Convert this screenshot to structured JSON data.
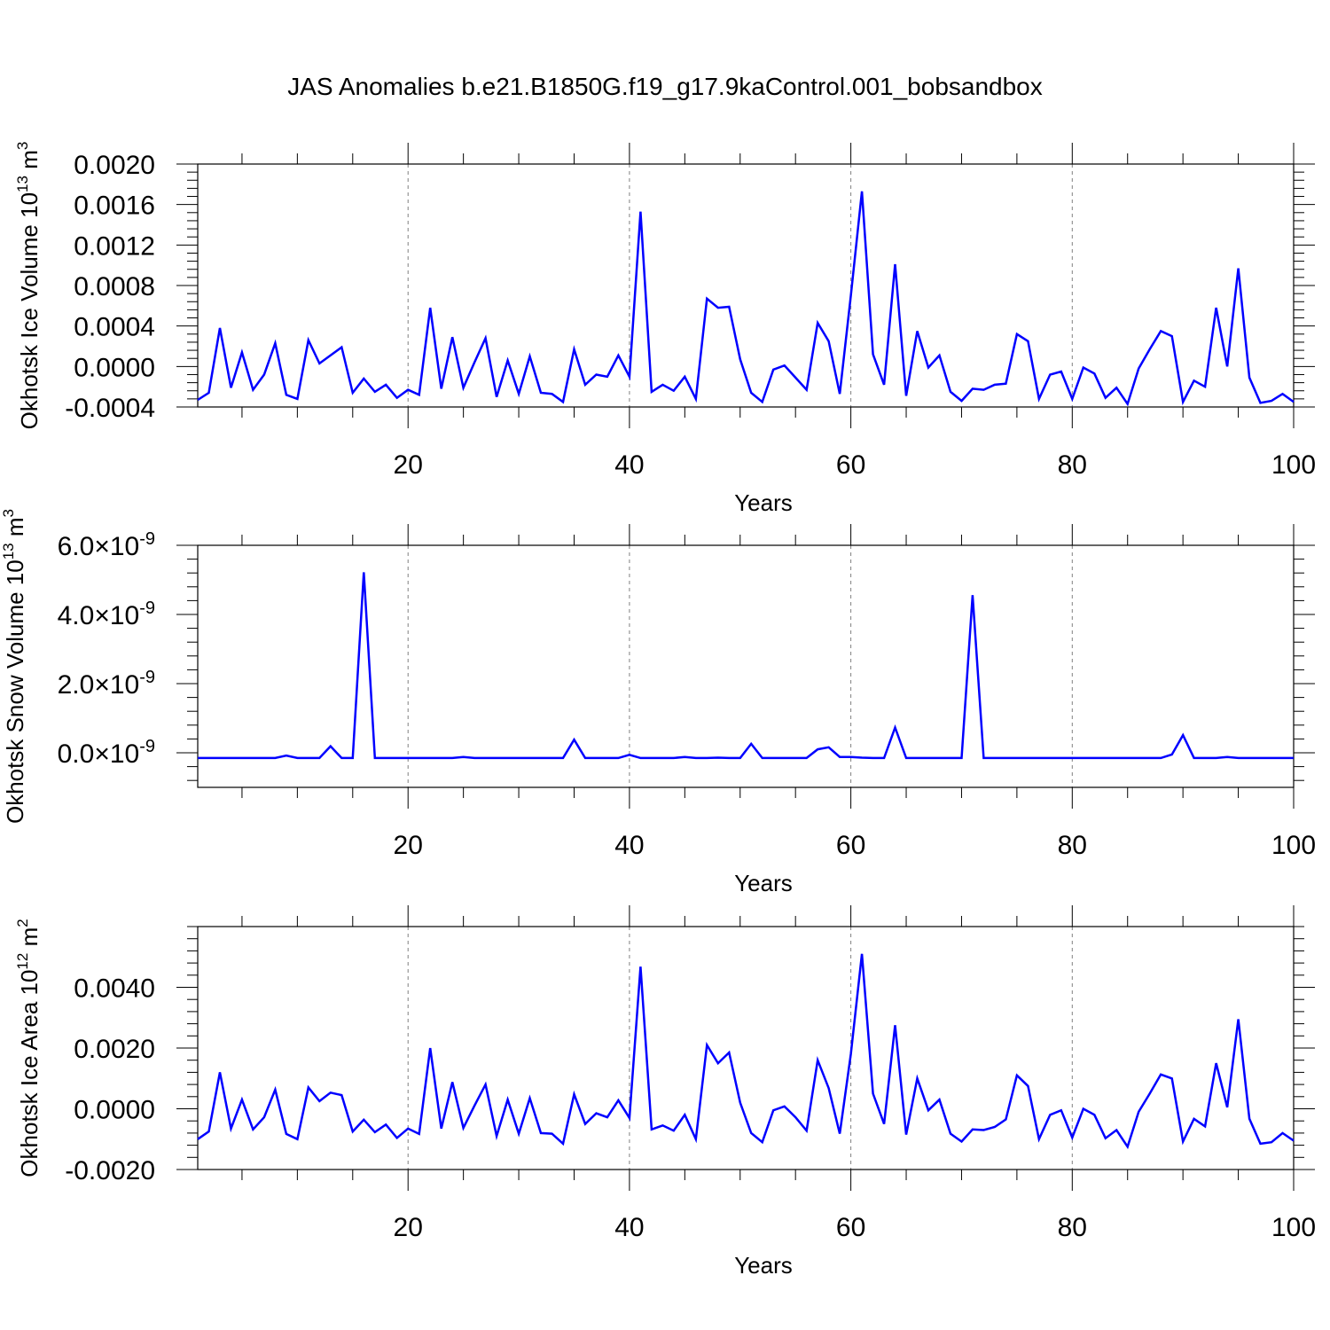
{
  "title": "JAS Anomalies b.e21.B1850G.f19_g17.9kaControl.001_bobsandbox",
  "line_color": "#0000ff",
  "chart_data": [
    {
      "type": "line",
      "ylabel": "Okhotsk Ice Volume 10",
      "ylabel_sup": "13",
      "ylabel_tail": " m",
      "ylabel_sup2": "3",
      "xlabel": "Years",
      "xlim": [
        1,
        100
      ],
      "ylim": [
        -0.0004,
        0.002
      ],
      "xticks": [
        "20",
        "40",
        "60",
        "80",
        "100"
      ],
      "xtick_values": [
        20,
        40,
        60,
        80,
        100
      ],
      "yticks": [
        "0.0020",
        "0.0016",
        "0.0012",
        "0.0008",
        "0.0004",
        "0.0000",
        "-0.0004"
      ],
      "ytick_values": [
        0.002,
        0.0016,
        0.0012,
        0.0008,
        0.0004,
        0.0,
        -0.0004
      ],
      "grid": "vertical dashed at major x ticks",
      "series": [
        {
          "values": [
            -0.00033,
            -0.00026,
            0.00038,
            -0.00021,
            0.00014,
            -0.00023,
            -8e-05,
            0.00023,
            -0.00028,
            -0.00032,
            0.00026,
            3e-05,
            0.00011,
            0.00019,
            -0.00026,
            -0.00012,
            -0.00025,
            -0.00018,
            -0.00031,
            -0.00023,
            -0.00028,
            0.00058,
            -0.00022,
            0.00029,
            -0.00021,
            4e-05,
            0.00028,
            -0.0003,
            6e-05,
            -0.00027,
            0.0001,
            -0.00026,
            -0.00027,
            -0.00035,
            0.00017,
            -0.00018,
            -8e-05,
            -0.0001,
            0.00011,
            -0.0001,
            0.00153,
            -0.00025,
            -0.00018,
            -0.00024,
            -0.0001,
            -0.00032,
            0.00067,
            0.00058,
            0.00059,
            7e-05,
            -0.00026,
            -0.00035,
            -3e-05,
            1e-05,
            -0.00011,
            -0.00023,
            0.00043,
            0.00025,
            -0.00027,
            0.0007,
            0.00173,
            0.00012,
            -0.00018,
            0.00101,
            -0.00029,
            0.00035,
            -1e-05,
            0.00011,
            -0.00025,
            -0.00034,
            -0.00022,
            -0.00023,
            -0.00018,
            -0.00017,
            0.00032,
            0.00025,
            -0.00032,
            -8e-05,
            -5e-05,
            -0.00032,
            -1e-05,
            -7e-05,
            -0.00031,
            -0.00021,
            -0.00037,
            -2e-05,
            0.00017,
            0.00035,
            0.0003,
            -0.00035,
            -0.00014,
            -0.0002,
            0.00058,
            0.0,
            0.00097,
            -0.00011,
            -0.00036,
            -0.00034,
            -0.00027,
            -0.00035
          ]
        }
      ]
    },
    {
      "type": "line",
      "ylabel": "Okhotsk Snow Volume 10",
      "ylabel_sup": "13",
      "ylabel_tail": " m",
      "ylabel_sup2": "3",
      "xlabel": "Years",
      "xlim": [
        1,
        100
      ],
      "ylim": [
        -1e-09,
        6e-09
      ],
      "xticks": [
        "20",
        "40",
        "60",
        "80",
        "100"
      ],
      "xtick_values": [
        20,
        40,
        60,
        80,
        100
      ],
      "yticks": [
        {
          "mant": "6.0",
          "exp": "-9",
          "value": 6e-09
        },
        {
          "mant": "4.0",
          "exp": "-9",
          "value": 4e-09
        },
        {
          "mant": "2.0",
          "exp": "-9",
          "value": 2e-09
        },
        {
          "mant": "0.0",
          "exp": "-9",
          "value": 0
        }
      ],
      "grid": "vertical dashed at major x ticks",
      "series": [
        {
          "values": [
            -1.5e-10,
            -1.5e-10,
            -1.5e-10,
            -1.5e-10,
            -1.5e-10,
            -1.5e-10,
            -1.5e-10,
            -1.5e-10,
            -8e-11,
            -1.5e-10,
            -1.5e-10,
            -1.5e-10,
            1.9e-10,
            -1.5e-10,
            -1.5e-10,
            5.22e-09,
            -1.5e-10,
            -1.5e-10,
            -1.5e-10,
            -1.5e-10,
            -1.5e-10,
            -1.5e-10,
            -1.5e-10,
            -1.5e-10,
            -1.2e-10,
            -1.5e-10,
            -1.5e-10,
            -1.5e-10,
            -1.5e-10,
            -1.5e-10,
            -1.5e-10,
            -1.5e-10,
            -1.5e-10,
            -1.5e-10,
            3.8e-10,
            -1.5e-10,
            -1.5e-10,
            -1.5e-10,
            -1.5e-10,
            -6e-11,
            -1.5e-10,
            -1.5e-10,
            -1.5e-10,
            -1.5e-10,
            -1.2e-10,
            -1.5e-10,
            -1.5e-10,
            -1.4e-10,
            -1.5e-10,
            -1.5e-10,
            2.6e-10,
            -1.5e-10,
            -1.5e-10,
            -1.5e-10,
            -1.5e-10,
            -1.5e-10,
            1e-10,
            1.6e-10,
            -1.2e-10,
            -1.2e-10,
            -1.4e-10,
            -1.5e-10,
            -1.5e-10,
            7.3e-10,
            -1.5e-10,
            -1.5e-10,
            -1.5e-10,
            -1.5e-10,
            -1.5e-10,
            -1.5e-10,
            4.56e-09,
            -1.5e-10,
            -1.5e-10,
            -1.5e-10,
            -1.5e-10,
            -1.5e-10,
            -1.5e-10,
            -1.5e-10,
            -1.5e-10,
            -1.5e-10,
            -1.5e-10,
            -1.5e-10,
            -1.5e-10,
            -1.5e-10,
            -1.5e-10,
            -1.5e-10,
            -1.5e-10,
            -1.5e-10,
            -5e-11,
            5.1e-10,
            -1.5e-10,
            -1.5e-10,
            -1.5e-10,
            -1.2e-10,
            -1.5e-10,
            -1.5e-10,
            -1.5e-10,
            -1.5e-10,
            -1.5e-10,
            -1.5e-10
          ]
        }
      ]
    },
    {
      "type": "line",
      "ylabel": "Okhotsk Ice Area 10",
      "ylabel_sup": "12",
      "ylabel_tail": " m",
      "ylabel_sup2": "2",
      "xlabel": "Years",
      "xlim": [
        1,
        100
      ],
      "ylim": [
        -0.002,
        0.006
      ],
      "xticks": [
        "20",
        "40",
        "60",
        "80",
        "100"
      ],
      "xtick_values": [
        20,
        40,
        60,
        80,
        100
      ],
      "yticks": [
        "0.0040",
        "0.0020",
        "0.0000",
        "-0.0020"
      ],
      "ytick_values": [
        0.004,
        0.002,
        0.0,
        -0.002
      ],
      "grid": "vertical dashed at major x ticks",
      "series": [
        {
          "values": [
            -0.001,
            -0.00075,
            0.0012,
            -0.00065,
            0.0003,
            -0.00068,
            -0.00028,
            0.00063,
            -0.00083,
            -0.001,
            0.0007,
            0.00025,
            0.00053,
            0.00045,
            -0.00075,
            -0.00036,
            -0.00077,
            -0.00052,
            -0.00096,
            -0.00065,
            -0.00083,
            0.002,
            -0.00065,
            0.00088,
            -0.00063,
            0.0001,
            0.0008,
            -0.0009,
            0.0003,
            -0.00082,
            0.00035,
            -0.0008,
            -0.00082,
            -0.00115,
            0.00048,
            -0.0005,
            -0.00015,
            -0.00028,
            0.00028,
            -0.0003,
            0.00468,
            -0.00068,
            -0.00055,
            -0.00072,
            -0.0002,
            -0.001,
            0.0021,
            0.0015,
            0.00185,
            0.0002,
            -0.0008,
            -0.0011,
            -5e-05,
            8e-05,
            -0.00028,
            -0.00072,
            0.0016,
            0.00068,
            -0.00082,
            0.0018,
            0.0051,
            0.0005,
            -0.0005,
            0.00275,
            -0.00085,
            0.001,
            -5e-05,
            0.0003,
            -0.00082,
            -0.00108,
            -0.00068,
            -0.0007,
            -0.0006,
            -0.00035,
            0.0011,
            0.00075,
            -0.001,
            -0.0002,
            -5e-05,
            -0.00095,
            0.0,
            -0.0002,
            -0.00097,
            -0.0007,
            -0.00125,
            -0.0001,
            0.0005,
            0.00113,
            0.001,
            -0.00108,
            -0.00033,
            -0.00058,
            0.0015,
            5e-05,
            0.00295,
            -0.00033,
            -0.00115,
            -0.0011,
            -0.0008,
            -0.00105
          ]
        }
      ]
    }
  ]
}
